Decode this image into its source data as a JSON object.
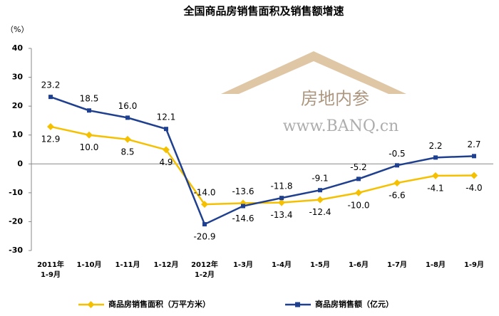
{
  "chart_data": {
    "type": "line",
    "title": "全国商品房销售面积及销售额增速",
    "y_unit": "（%）",
    "annotations": [
      "房地内参",
      "www.BANQ.cn"
    ],
    "categories": [
      "2011年\n1-9月",
      "1-10月",
      "1-11月",
      "1-12月",
      "2012年\n1-2月",
      "1-3月",
      "1-4月",
      "1-5月",
      "1-6月",
      "1-7月",
      "1-8月",
      "1-9月"
    ],
    "series": [
      {
        "name": "商品房销售面积（万平方米）",
        "color": "#f5c000",
        "values": [
          12.9,
          10.0,
          8.5,
          4.9,
          -14.0,
          -13.6,
          -13.4,
          -12.4,
          -10.0,
          -6.6,
          -4.1,
          -4.0
        ],
        "value_labels": [
          "12.9",
          "10.0",
          "8.5",
          "4.9",
          "-14.0",
          "-13.6",
          "-13.4",
          "-12.4",
          "-10.0",
          "-6.6",
          "-4.1",
          "-4.0"
        ]
      },
      {
        "name": "商品房销售额（亿元）",
        "color": "#1f3f8f",
        "values": [
          23.2,
          18.5,
          16.0,
          12.1,
          -20.9,
          -14.6,
          -11.8,
          -9.1,
          -5.2,
          -0.5,
          2.2,
          2.7
        ],
        "value_labels": [
          "23.2",
          "18.5",
          "16.0",
          "12.1",
          "-20.9",
          "-14.6",
          "-11.8",
          "-9.1",
          "-5.2",
          "-0.5",
          "2.2",
          "2.7"
        ]
      }
    ],
    "ylim": [
      -30,
      40
    ],
    "yticks": [
      -30,
      -20,
      -10,
      0,
      10,
      20,
      30,
      40
    ],
    "grid": false
  }
}
